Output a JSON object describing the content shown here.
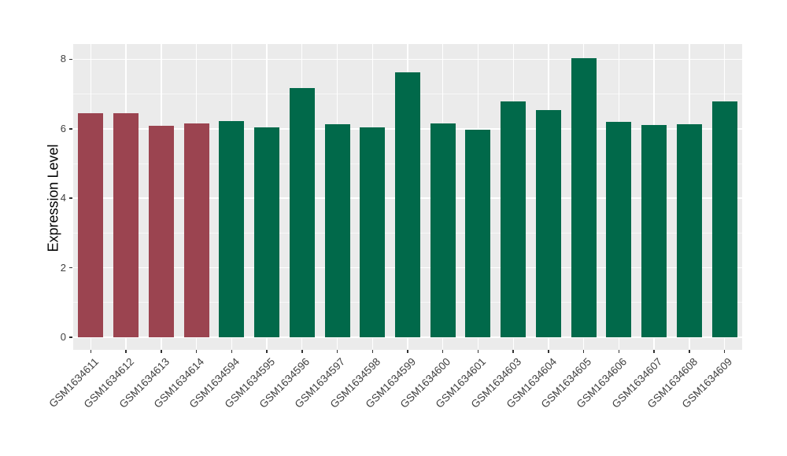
{
  "figure": {
    "background": "#FFFFFF"
  },
  "chart_data": {
    "type": "bar",
    "title": "",
    "xlabel": "",
    "ylabel": "Expression Level",
    "categories": [
      "GSM1634611",
      "GSM1634612",
      "GSM1634613",
      "GSM1634614",
      "GSM1634594",
      "GSM1634595",
      "GSM1634596",
      "GSM1634597",
      "GSM1634598",
      "GSM1634599",
      "GSM1634600",
      "GSM1634601",
      "GSM1634603",
      "GSM1634604",
      "GSM1634605",
      "GSM1634606",
      "GSM1634607",
      "GSM1634608",
      "GSM1634609"
    ],
    "values": [
      6.45,
      6.45,
      6.09,
      6.15,
      6.22,
      6.03,
      7.18,
      6.12,
      6.03,
      7.63,
      6.16,
      5.97,
      6.79,
      6.54,
      8.03,
      6.2,
      6.11,
      6.14,
      6.78
    ],
    "bar_colors": [
      "#9B4450",
      "#9B4450",
      "#9B4450",
      "#9B4450",
      "#01694A",
      "#01694A",
      "#01694A",
      "#01694A",
      "#01694A",
      "#01694A",
      "#01694A",
      "#01694A",
      "#01694A",
      "#01694A",
      "#01694A",
      "#01694A",
      "#01694A",
      "#01694A",
      "#01694A"
    ],
    "color_key": {
      "red_group": "#9B4450",
      "green_group": "#01694A"
    },
    "yticks": [
      0,
      2,
      4,
      6,
      8
    ],
    "yticks_minor": [
      1,
      3,
      5,
      7
    ],
    "ylim": [
      0,
      8.45
    ],
    "grid": "on",
    "legend": "none",
    "panel_background": "#EBEBEB",
    "gridline_color": "#FFFFFF",
    "axis_text_color": "#404040",
    "x_tick_rotation_deg": 45
  }
}
